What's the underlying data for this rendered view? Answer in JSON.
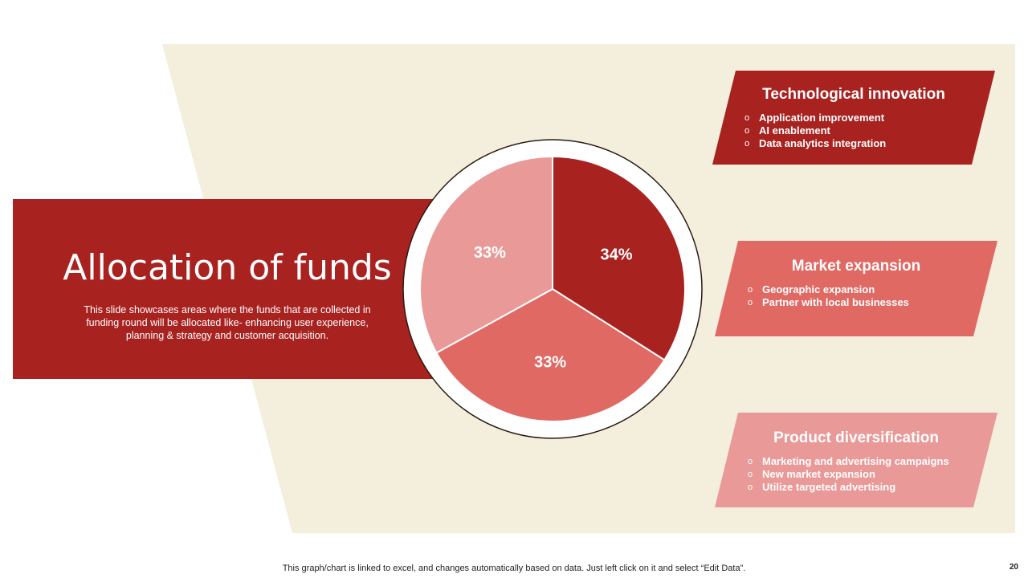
{
  "slide": {
    "title": "Allocation of funds",
    "description": "This slide showcases areas where the funds that are collected in funding round will be allocated like- enhancing user experience, planning & strategy and customer acquisition.",
    "footer_note": "This graph/chart is linked to excel,  and changes automatically based on data. Just left click on it and select “Edit Data”.",
    "page_number": "20"
  },
  "colors": {
    "background_band": "#f3efdc",
    "dark_red": "#a82220",
    "medium_red": "#e06964",
    "light_red": "#e99997",
    "white": "#ffffff"
  },
  "chart_data": {
    "type": "pie",
    "title": "",
    "slices": [
      {
        "label": "34%",
        "value": 34,
        "color": "#a82220"
      },
      {
        "label": "33%",
        "value": 33,
        "color": "#e06964"
      },
      {
        "label": "33%",
        "value": 33,
        "color": "#e99997"
      }
    ]
  },
  "panels": [
    {
      "title": "Technological innovation",
      "color": "#a82220",
      "items": [
        "Application improvement",
        "AI enablement",
        "Data analytics integration"
      ]
    },
    {
      "title": "Market expansion",
      "color": "#e06964",
      "items": [
        "Geographic expansion",
        "Partner with local businesses"
      ]
    },
    {
      "title": "Product diversification",
      "color": "#e99997",
      "items": [
        "Marketing and advertising campaigns",
        "New market expansion",
        "Utilize targeted advertising"
      ]
    }
  ]
}
